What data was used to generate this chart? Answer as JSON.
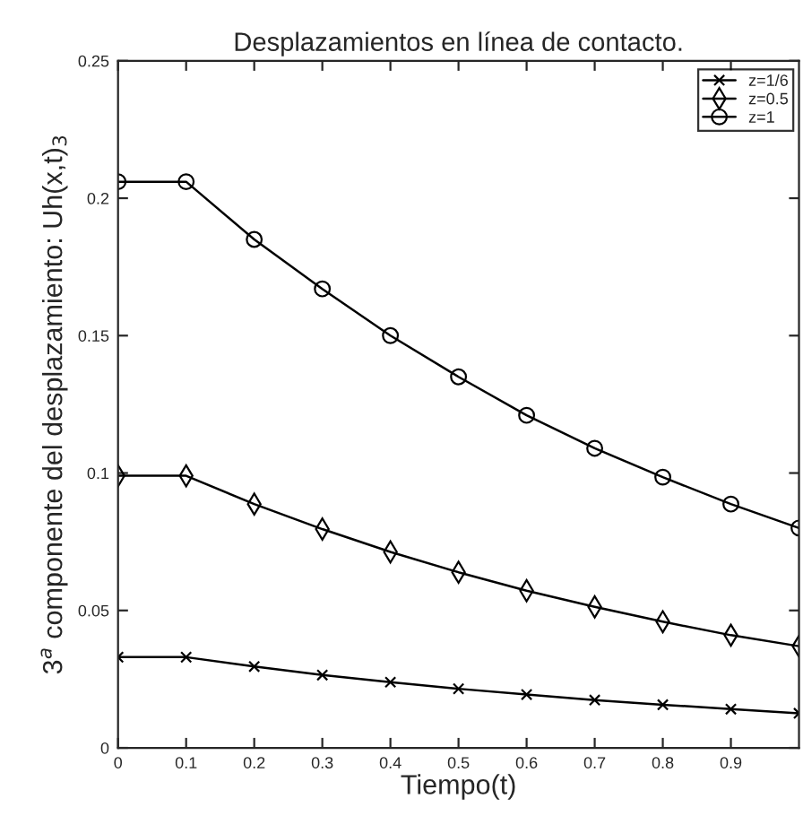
{
  "chart_data": {
    "type": "line",
    "title": "Desplazamientos en línea de contacto.",
    "xlabel": "Tiempo(t)",
    "ylabel": "3$^{a}$ componente del desplazamiento: Uh(x,t)$_{3}$",
    "x": [
      0,
      0.1,
      0.2,
      0.3,
      0.4,
      0.5,
      0.6,
      0.7,
      0.8,
      0.9,
      1
    ],
    "series": [
      {
        "name": "z=1/6",
        "color": "#000000",
        "marker": "cross",
        "values": [
          0.033,
          0.033,
          0.0296,
          0.0265,
          0.0239,
          0.0215,
          0.0194,
          0.0174,
          0.0157,
          0.0141,
          0.0126
        ]
      },
      {
        "name": "z=0.5",
        "color": "#000000",
        "marker": "diamond",
        "values": [
          0.099,
          0.099,
          0.0887,
          0.0796,
          0.0713,
          0.0639,
          0.0572,
          0.0513,
          0.0459,
          0.041,
          0.037
        ]
      },
      {
        "name": "z=1",
        "color": "#000000",
        "marker": "circle",
        "values": [
          0.206,
          0.206,
          0.185,
          0.167,
          0.15,
          0.135,
          0.121,
          0.109,
          0.0985,
          0.0887,
          0.08
        ]
      }
    ],
    "xlim": [
      0,
      1
    ],
    "ylim": [
      0,
      0.25
    ],
    "xticks": [
      0,
      0.1,
      0.2,
      0.3,
      0.4,
      0.5,
      0.6,
      0.7,
      0.8,
      0.9
    ],
    "yticks": [
      0,
      0.05,
      0.1,
      0.15,
      0.2,
      0.25
    ],
    "grid": false,
    "legend": "top right",
    "line_style": "solid"
  }
}
